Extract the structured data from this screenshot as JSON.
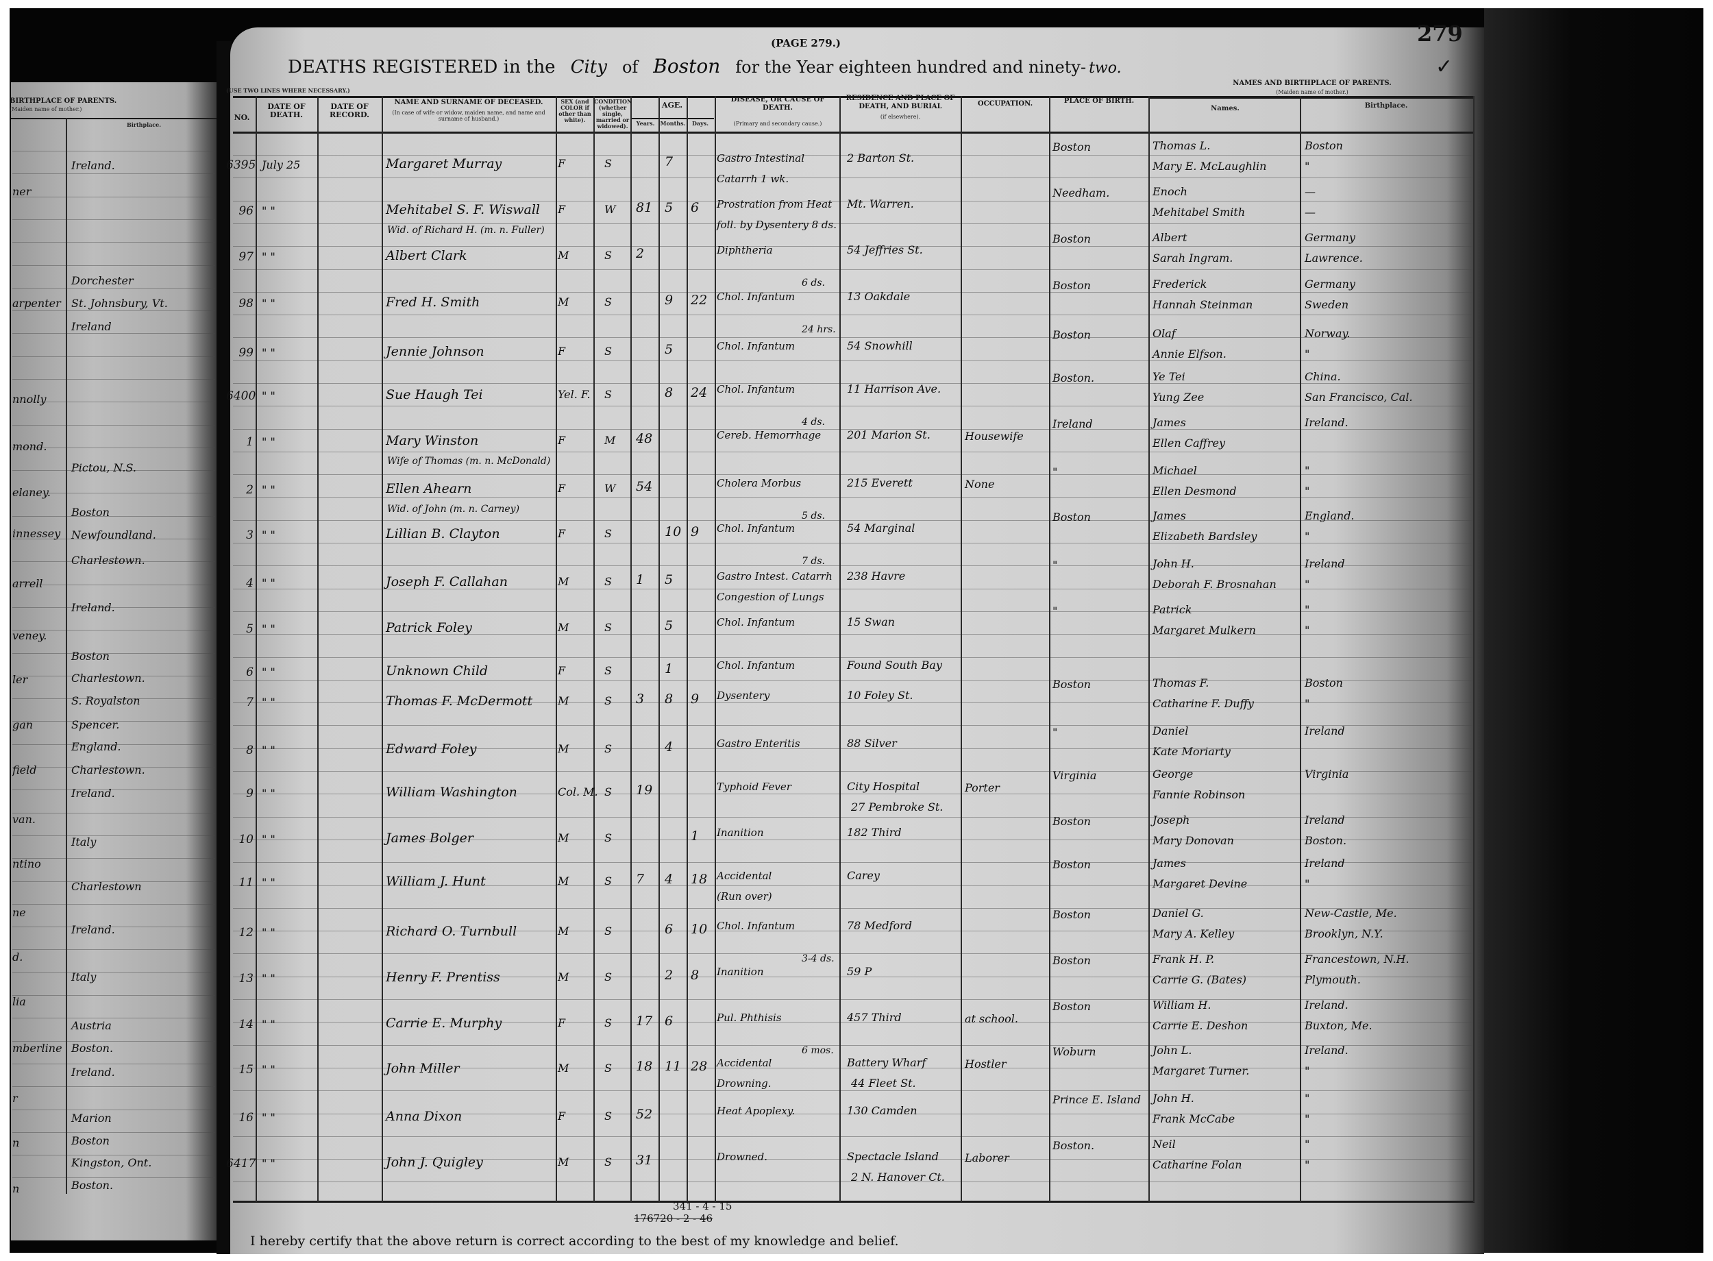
{
  "header": {
    "note": "(USE TWO LINES WHERE NECESSARY.)",
    "page_label": "(PAGE 279.)",
    "page_number": "279",
    "checkmark": "✓",
    "title_prefix": "DEATHS REGISTERED in the",
    "municipality_type": "City",
    "of": "of",
    "municipality": "Boston",
    "year_text": "for the Year eighteen hundred and ninety-",
    "year_suffix": "two."
  },
  "columns": {
    "no": "No.",
    "date_of_death": "DATE OF DEATH.",
    "date_of_record": "DATE OF RECORD.",
    "name": "NAME AND SURNAME OF DECEASED.",
    "name_note": "(In case of wife or widow, maiden name, and name and surname of husband.)",
    "sex": "SEX (and COLOR if other than white).",
    "condition": "CONDITION (whether single, married or widowed).",
    "age": "AGE.",
    "years": "Years.",
    "months": "Months.",
    "days": "Days.",
    "disease": "DISEASE, OR CAUSE OF DEATH.",
    "disease_note": "(Primary and secondary cause.)",
    "residence": "RESIDENCE and PLACE OF DEATH, and Burial",
    "residence_note": "(if elsewhere).",
    "occupation": "OCCUPATION.",
    "place_of_birth": "PLACE OF BIRTH.",
    "parents": "NAMES AND BIRTHPLACE OF PARENTS.",
    "parents_note": "(Maiden name of mother.)",
    "parent_names": "Names.",
    "parent_birthplace": "Birthplace."
  },
  "records": [
    {
      "no": "6395",
      "date": "July 25",
      "name": "Margaret Murray",
      "name2": "",
      "sex": "F",
      "cond": "S",
      "years": "",
      "months": "7",
      "days": "",
      "disease": "Gastro Intestinal",
      "disease2": "Catarrh 1 wk.",
      "duration": "",
      "residence": "2 Barton St.",
      "residence2": "",
      "occupation": "",
      "birthplace": "Boston",
      "father": "Thomas L.",
      "mother": "Mary E. McLaughlin",
      "father_bp": "Boston",
      "mother_bp": "\""
    },
    {
      "no": "96",
      "date": "\"  \"",
      "name": "Mehitabel S. F. Wiswall",
      "name2": "Wid. of Richard H. (m. n. Fuller)",
      "sex": "F",
      "cond": "W",
      "years": "81",
      "months": "5",
      "days": "6",
      "disease": "Prostration from Heat",
      "disease2": "foll. by Dysentery 8 ds.",
      "duration": "",
      "residence": "Mt. Warren.",
      "residence2": "",
      "occupation": "",
      "birthplace": "Needham.",
      "father": "Enoch",
      "mother": "Mehitabel Smith",
      "father_bp": "—",
      "mother_bp": "—"
    },
    {
      "no": "97",
      "date": "\"  \"",
      "name": "Albert Clark",
      "name2": "",
      "sex": "M",
      "cond": "S",
      "years": "2",
      "months": "",
      "days": "",
      "disease": "Diphtheria",
      "disease2": "",
      "duration": "6 ds.",
      "residence": "54 Jeffries St.",
      "residence2": "",
      "occupation": "",
      "birthplace": "Boston",
      "father": "Albert",
      "mother": "Sarah Ingram.",
      "father_bp": "Germany",
      "mother_bp": "Lawrence."
    },
    {
      "no": "98",
      "date": "\"  \"",
      "name": "Fred H. Smith",
      "name2": "",
      "sex": "M",
      "cond": "S",
      "years": "",
      "months": "9",
      "days": "22",
      "disease": "Chol. Infantum",
      "disease2": "",
      "duration": "24 hrs.",
      "residence": "13 Oakdale",
      "residence2": "",
      "occupation": "",
      "birthplace": "Boston",
      "father": "Frederick",
      "mother": "Hannah Steinman",
      "father_bp": "Germany",
      "mother_bp": "Sweden"
    },
    {
      "no": "99",
      "date": "\"  \"",
      "name": "Jennie Johnson",
      "name2": "",
      "sex": "F",
      "cond": "S",
      "years": "",
      "months": "5",
      "days": "",
      "disease": "Chol. Infantum",
      "disease2": "",
      "duration": "",
      "residence": "54 Snowhill",
      "residence2": "",
      "occupation": "",
      "birthplace": "Boston",
      "father": "Olaf",
      "mother": "Annie Elfson.",
      "father_bp": "Norway.",
      "mother_bp": "\""
    },
    {
      "no": "6400",
      "date": "\"  \"",
      "name": "Sue Haugh Tei",
      "name2": "",
      "sex": "Yel. F.",
      "cond": "S",
      "years": "",
      "months": "8",
      "days": "24",
      "disease": "Chol. Infantum",
      "disease2": "",
      "duration": "4 ds.",
      "residence": "11 Harrison Ave.",
      "residence2": "",
      "occupation": "",
      "birthplace": "Boston.",
      "father": "Ye Tei",
      "mother": "Yung Zee",
      "father_bp": "China.",
      "mother_bp": "San Francisco, Cal."
    },
    {
      "no": "1",
      "date": "\"  \"",
      "name": "Mary Winston",
      "name2": "Wife of Thomas (m. n. McDonald)",
      "sex": "F",
      "cond": "M",
      "years": "48",
      "months": "",
      "days": "",
      "disease": "Cereb. Hemorrhage",
      "disease2": "",
      "duration": "",
      "residence": "201 Marion St.",
      "residence2": "",
      "occupation": "Housewife",
      "birthplace": "Ireland",
      "father": "James",
      "mother": "Ellen Caffrey",
      "father_bp": "Ireland.",
      "mother_bp": ""
    },
    {
      "no": "2",
      "date": "\"  \"",
      "name": "Ellen Ahearn",
      "name2": "Wid. of John (m. n. Carney)",
      "sex": "F",
      "cond": "W",
      "years": "54",
      "months": "",
      "days": "",
      "disease": "Cholera Morbus",
      "disease2": "",
      "duration": "5 ds.",
      "residence": "215 Everett",
      "residence2": "",
      "occupation": "None",
      "birthplace": "\"",
      "father": "Michael",
      "mother": "Ellen Desmond",
      "father_bp": "\"",
      "mother_bp": "\""
    },
    {
      "no": "3",
      "date": "\"  \"",
      "name": "Lillian B. Clayton",
      "name2": "",
      "sex": "F",
      "cond": "S",
      "years": "",
      "months": "10",
      "days": "9",
      "disease": "Chol. Infantum",
      "disease2": "",
      "duration": "7 ds.",
      "residence": "54 Marginal",
      "residence2": "",
      "occupation": "",
      "birthplace": "Boston",
      "father": "James",
      "mother": "Elizabeth Bardsley",
      "father_bp": "England.",
      "mother_bp": "\""
    },
    {
      "no": "4",
      "date": "\"  \"",
      "name": "Joseph F. Callahan",
      "name2": "",
      "sex": "M",
      "cond": "S",
      "years": "1",
      "months": "5",
      "days": "",
      "disease": "Gastro Intest. Catarrh",
      "disease2": "Congestion of Lungs",
      "duration": "",
      "residence": "238 Havre",
      "residence2": "",
      "occupation": "",
      "birthplace": "\"",
      "father": "John H.",
      "mother": "Deborah F. Brosnahan",
      "father_bp": "Ireland",
      "mother_bp": "\""
    },
    {
      "no": "5",
      "date": "\"  \"",
      "name": "Patrick Foley",
      "name2": "",
      "sex": "M",
      "cond": "S",
      "years": "",
      "months": "5",
      "days": "",
      "disease": "Chol. Infantum",
      "disease2": "",
      "duration": "",
      "residence": "15 Swan",
      "residence2": "",
      "occupation": "",
      "birthplace": "\"",
      "father": "Patrick",
      "mother": "Margaret Mulkern",
      "father_bp": "\"",
      "mother_bp": "\""
    },
    {
      "no": "6",
      "date": "\"  \"",
      "name": "Unknown Child",
      "name2": "",
      "sex": "F",
      "cond": "S",
      "years": "",
      "months": "1",
      "days": "",
      "disease": "Chol. Infantum",
      "disease2": "",
      "duration": "",
      "residence": "Found South Bay",
      "residence2": "",
      "occupation": "",
      "birthplace": "",
      "father": "",
      "mother": "",
      "father_bp": "",
      "mother_bp": ""
    },
    {
      "no": "7",
      "date": "\"  \"",
      "name": "Thomas F. McDermott",
      "name2": "",
      "sex": "M",
      "cond": "S",
      "years": "3",
      "months": "8",
      "days": "9",
      "disease": "Dysentery",
      "disease2": "",
      "duration": "",
      "residence": "10 Foley St.",
      "residence2": "",
      "occupation": "",
      "birthplace": "Boston",
      "father": "Thomas F.",
      "mother": "Catharine F. Duffy",
      "father_bp": "Boston",
      "mother_bp": "\""
    },
    {
      "no": "8",
      "date": "\"  \"",
      "name": "Edward Foley",
      "name2": "",
      "sex": "M",
      "cond": "S",
      "years": "",
      "months": "4",
      "days": "",
      "disease": "Gastro Enteritis",
      "disease2": "",
      "duration": "",
      "residence": "88 Silver",
      "residence2": "",
      "occupation": "",
      "birthplace": "\"",
      "father": "Daniel",
      "mother": "Kate Moriarty",
      "father_bp": "Ireland",
      "mother_bp": ""
    },
    {
      "no": "9",
      "date": "\"  \"",
      "name": "William Washington",
      "name2": "",
      "sex": "Col. M.",
      "cond": "S",
      "years": "19",
      "months": "",
      "days": "",
      "disease": "Typhoid Fever",
      "disease2": "",
      "duration": "",
      "residence": "City Hospital",
      "residence2": "27 Pembroke St.",
      "occupation": "Porter",
      "birthplace": "Virginia",
      "father": "George",
      "mother": "Fannie Robinson",
      "father_bp": "Virginia",
      "mother_bp": ""
    },
    {
      "no": "10",
      "date": "\"  \"",
      "name": "James Bolger",
      "name2": "",
      "sex": "M",
      "cond": "S",
      "years": "",
      "months": "",
      "days": "1",
      "disease": "Inanition",
      "disease2": "",
      "duration": "",
      "residence": "182 Third",
      "residence2": "",
      "occupation": "",
      "birthplace": "Boston",
      "father": "Joseph",
      "mother": "Mary Donovan",
      "father_bp": "Ireland",
      "mother_bp": "Boston."
    },
    {
      "no": "11",
      "date": "\"  \"",
      "name": "William J. Hunt",
      "name2": "",
      "sex": "M",
      "cond": "S",
      "years": "7",
      "months": "4",
      "days": "18",
      "disease": "Accidental",
      "disease2": "(Run over)",
      "duration": "",
      "residence": "Carey",
      "residence2": "",
      "occupation": "",
      "birthplace": "Boston",
      "father": "James",
      "mother": "Margaret Devine",
      "father_bp": "Ireland",
      "mother_bp": "\""
    },
    {
      "no": "12",
      "date": "\"  \"",
      "name": "Richard O. Turnbull",
      "name2": "",
      "sex": "M",
      "cond": "S",
      "years": "",
      "months": "6",
      "days": "10",
      "disease": "Chol. Infantum",
      "disease2": "",
      "duration": "3-4 ds.",
      "residence": "78 Medford",
      "residence2": "",
      "occupation": "",
      "birthplace": "Boston",
      "father": "Daniel G.",
      "mother": "Mary A. Kelley",
      "father_bp": "New-Castle, Me.",
      "mother_bp": "Brooklyn, N.Y."
    },
    {
      "no": "13",
      "date": "\"  \"",
      "name": "Henry F. Prentiss",
      "name2": "",
      "sex": "M",
      "cond": "S",
      "years": "",
      "months": "2",
      "days": "8",
      "disease": "Inanition",
      "disease2": "",
      "duration": "",
      "residence": "59 P",
      "residence2": "",
      "occupation": "",
      "birthplace": "Boston",
      "father": "Frank H. P.",
      "mother": "Carrie G. (Bates)",
      "father_bp": "Francestown, N.H.",
      "mother_bp": "Plymouth."
    },
    {
      "no": "14",
      "date": "\"  \"",
      "name": "Carrie E. Murphy",
      "name2": "",
      "sex": "F",
      "cond": "S",
      "years": "17",
      "months": "6",
      "days": "",
      "disease": "Pul. Phthisis",
      "disease2": "",
      "duration": "6 mos.",
      "residence": "457 Third",
      "residence2": "",
      "occupation": "at school.",
      "birthplace": "Boston",
      "father": "William H.",
      "mother": "Carrie E. Deshon",
      "father_bp": "Ireland.",
      "mother_bp": "Buxton, Me."
    },
    {
      "no": "15",
      "date": "\"  \"",
      "name": "John Miller",
      "name2": "",
      "sex": "M",
      "cond": "S",
      "years": "18",
      "months": "11",
      "days": "28",
      "disease": "Accidental",
      "disease2": "Drowning.",
      "duration": "",
      "residence": "Battery Wharf",
      "residence2": "44 Fleet St.",
      "occupation": "Hostler",
      "birthplace": "Woburn",
      "father": "John L.",
      "mother": "Margaret Turner.",
      "father_bp": "Ireland.",
      "mother_bp": "\""
    },
    {
      "no": "16",
      "date": "\"  \"",
      "name": "Anna Dixon",
      "name2": "",
      "sex": "F",
      "cond": "S",
      "years": "52",
      "months": "",
      "days": "",
      "disease": "Heat Apoplexy.",
      "disease2": "",
      "duration": "",
      "residence": "130 Camden",
      "residence2": "",
      "occupation": "",
      "birthplace": "Prince E. Island",
      "father": "John H.",
      "mother": "Frank McCabe",
      "father_bp": "\"",
      "mother_bp": "\""
    },
    {
      "no": "6417",
      "date": "\"  \"",
      "name": "John J. Quigley",
      "name2": "",
      "sex": "M",
      "cond": "S",
      "years": "31",
      "months": "",
      "days": "",
      "disease": "Drowned.",
      "disease2": "",
      "duration": "",
      "residence": "Spectacle Island",
      "residence2": "2 N. Hanover Ct.",
      "occupation": "Laborer",
      "birthplace": "Boston.",
      "father": "Neil",
      "mother": "Catharine Folan",
      "father_bp": "\"",
      "mother_bp": "\""
    }
  ],
  "totals": {
    "line1": "341 - 4 - 15",
    "line2": "176720 - 2 - 46"
  },
  "certification": "I hereby certify that the above return is correct according to the best of my knowledge and belief.",
  "left_page": {
    "header": "BIRTHPLACE OF PARENTS.",
    "header_note": "(Maiden name of mother.)",
    "birthplace_label": "Birthplace.",
    "name_fragments": [
      "ner",
      "arpenter",
      "nnolly",
      "mond.",
      "elaney.",
      "innessey",
      "arrell",
      "veney.",
      "ler",
      "gan",
      "field",
      "van.",
      "ntino",
      "ne",
      "d.",
      "lia",
      "mberline",
      "r",
      "n",
      "n"
    ],
    "birthplaces": [
      "Ireland.",
      "Dorchester",
      "St. Johnsbury, Vt.",
      "Ireland",
      "Pictou, N.S.",
      "Boston",
      "Newfoundland.",
      "Charlestown.",
      "Ireland.",
      "Boston",
      "Charlestown.",
      "S. Royalston",
      "Spencer.",
      "England.",
      "Charlestown.",
      "Ireland.",
      "Italy",
      "Charlestown",
      "Ireland.",
      "Italy",
      "Austria",
      "Boston.",
      "Ireland.",
      "Marion",
      "Boston",
      "Kingston, Ont.",
      "Boston."
    ]
  }
}
